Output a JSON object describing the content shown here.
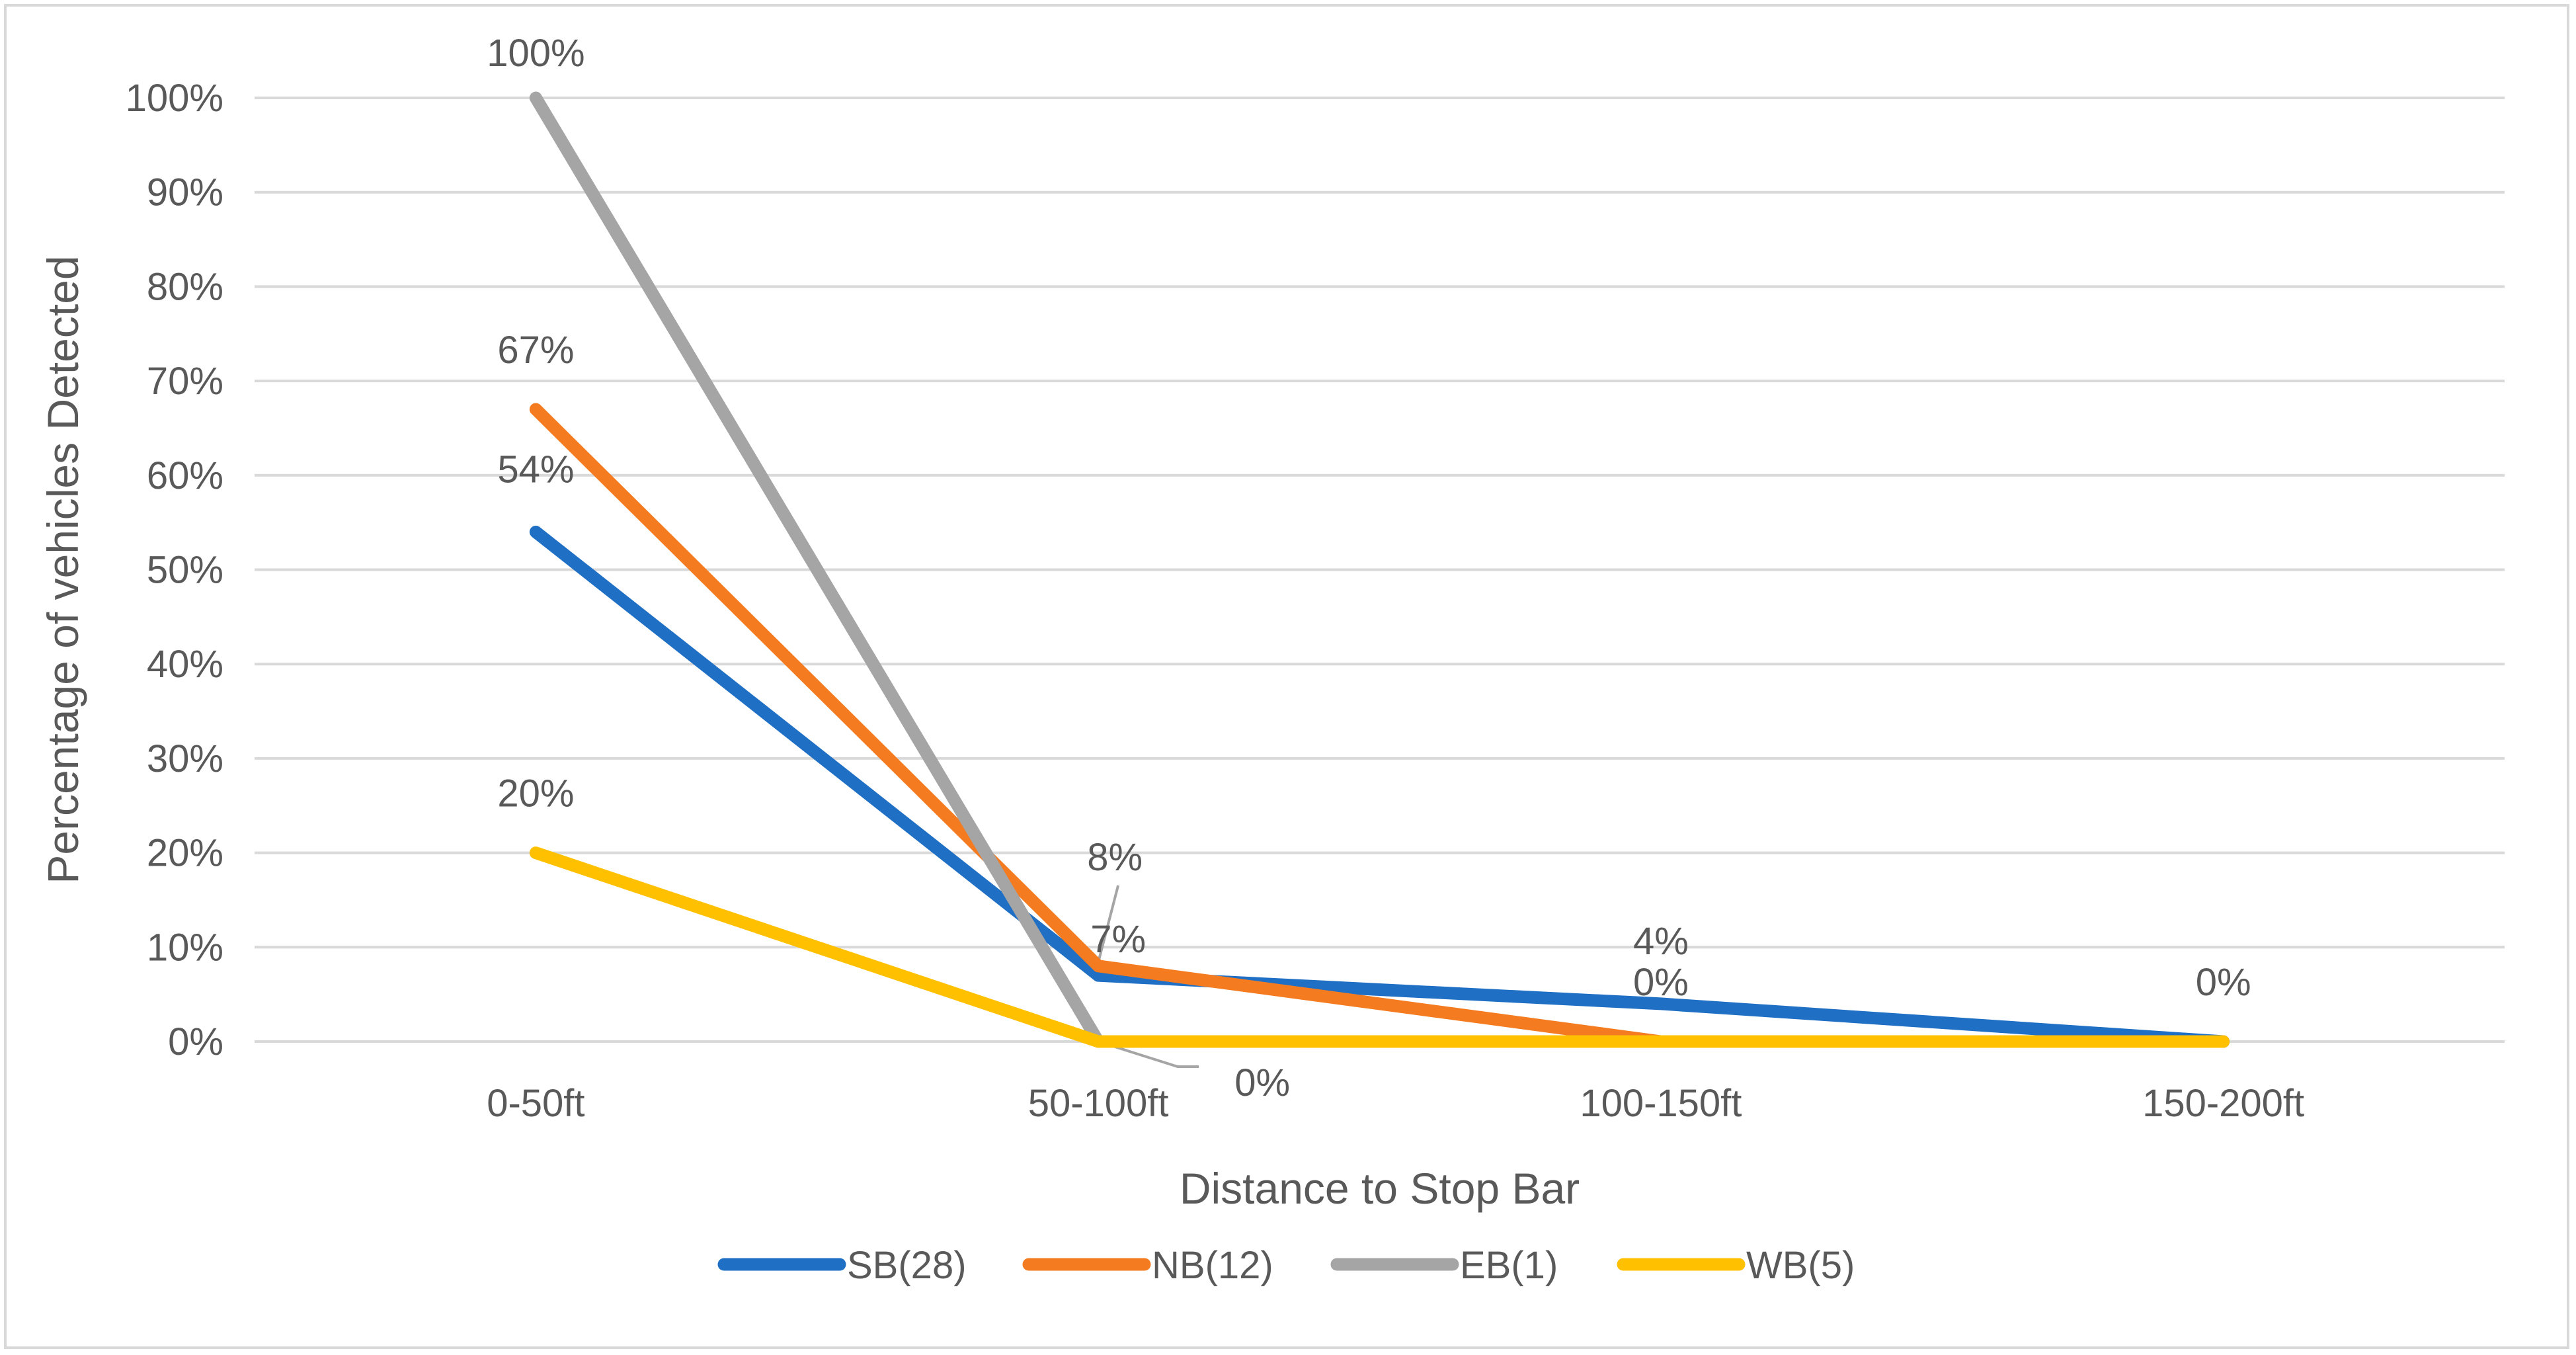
{
  "chart_data": {
    "type": "line",
    "title": "",
    "xlabel": "Distance to Stop Bar",
    "ylabel": "Percentage of vehicles Detected",
    "categories": [
      "0-50ft",
      "50-100ft",
      "100-150ft",
      "150-200ft"
    ],
    "ylim": [
      0,
      100
    ],
    "yticks": [
      0,
      10,
      20,
      30,
      40,
      50,
      60,
      70,
      80,
      90,
      100
    ],
    "ytick_labels": [
      "0%",
      "10%",
      "20%",
      "30%",
      "40%",
      "50%",
      "60%",
      "70%",
      "80%",
      "90%",
      "100%"
    ],
    "grid": true,
    "legend_position": "bottom",
    "series": [
      {
        "name": "SB(28)",
        "color": "#1f6fc5",
        "values": [
          54,
          7,
          4,
          0
        ],
        "labels": [
          "54%",
          "7%",
          "4%",
          ""
        ]
      },
      {
        "name": "NB(12)",
        "color": "#f47b20",
        "values": [
          67,
          8,
          0,
          0
        ],
        "labels": [
          "67%",
          "8%",
          "0%",
          ""
        ]
      },
      {
        "name": "EB(1)",
        "color": "#a5a5a5",
        "values": [
          100,
          0,
          null,
          null
        ],
        "labels": [
          "100%",
          "0%",
          "",
          ""
        ]
      },
      {
        "name": "WB(5)",
        "color": "#ffc000",
        "values": [
          20,
          0,
          0,
          0
        ],
        "labels": [
          "20%",
          "",
          "",
          "0%"
        ]
      }
    ]
  }
}
